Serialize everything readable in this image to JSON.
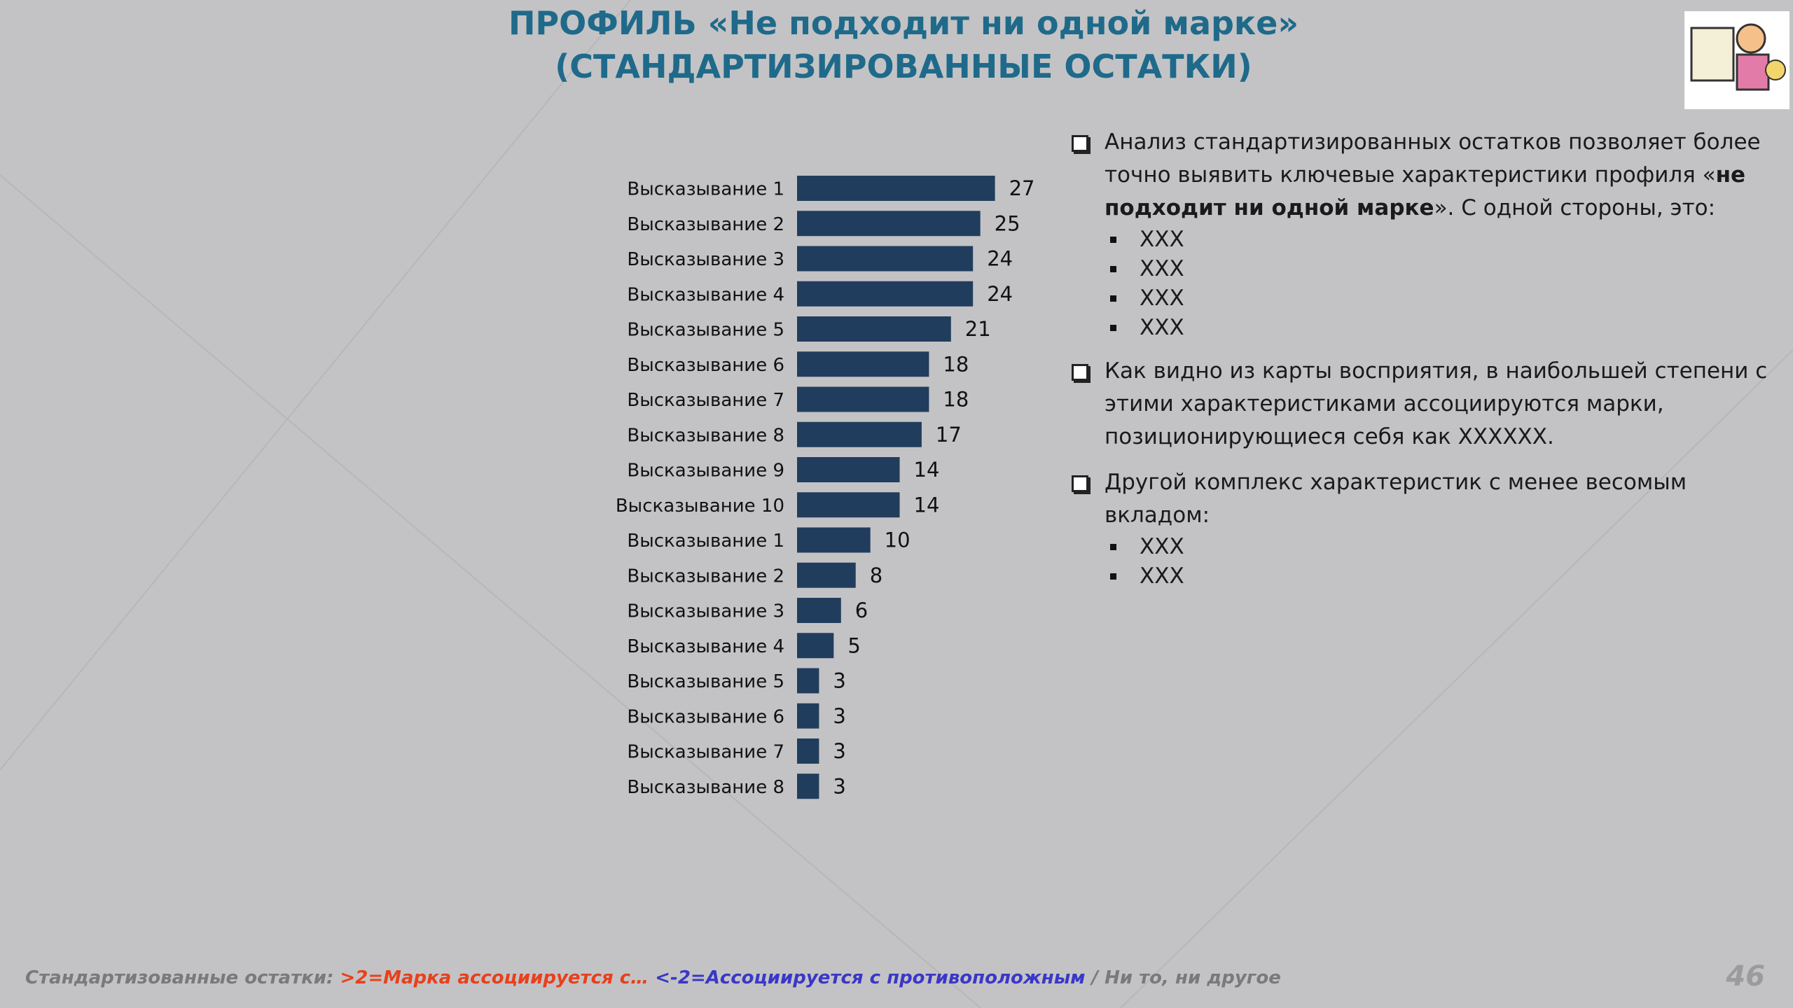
{
  "slide": {
    "title": [
      "ПРОФИЛЬ «Не подходит ни одной марке»",
      "(СТАНДАРТИЗИРОВАННЫЕ ОСТАТКИ)"
    ],
    "bullets": [
      {
        "text": [
          "Анализ стандартизированных остатков позволяет более точно выявить ключевые характеристики профиля «",
          "не подходит ни одной марке",
          "». С одной стороны, это:"
        ],
        "items": [
          "XXX",
          "XXX",
          "XXX",
          "XXX"
        ]
      },
      {
        "text": [
          "Как видно из карты восприятия,  в наибольшей степени с этими характеристиками ассоциируются марки, позиционирующиеся себя как XXXXXX."
        ],
        "items": []
      },
      {
        "text": [
          "Другой комплекс характеристик с менее весомым вкладом:"
        ],
        "items": [
          "XXX",
          "XXX"
        ]
      }
    ],
    "footer": [
      "Стандартизованные остатки: ",
      ">2=Марка ассоциируется с…",
      " ",
      "<-2=Ассоциируется с противоположным",
      " / Ни то, ни другое"
    ],
    "page_number": "46"
  },
  "chart_data": {
    "type": "barh",
    "categories": [
      "Высказывание 1",
      "Высказывание 2",
      "Высказывание 3",
      "Высказывание 4",
      "Высказывание 5",
      "Высказывание 6",
      "Высказывание 7",
      "Высказывание 8",
      "Высказывание 9",
      "Высказывание 10",
      "Высказывание 1",
      "Высказывание 2",
      "Высказывание 3",
      "Высказывание 4",
      "Высказывание 5",
      "Высказывание 6",
      "Высказывание 7",
      "Высказывание 8"
    ],
    "values": [
      27,
      25,
      24,
      24,
      21,
      18,
      18,
      17,
      14,
      14,
      10,
      8,
      6,
      5,
      3,
      3,
      3,
      3
    ],
    "color": "#213d5e",
    "xlim": [
      0,
      30
    ]
  }
}
